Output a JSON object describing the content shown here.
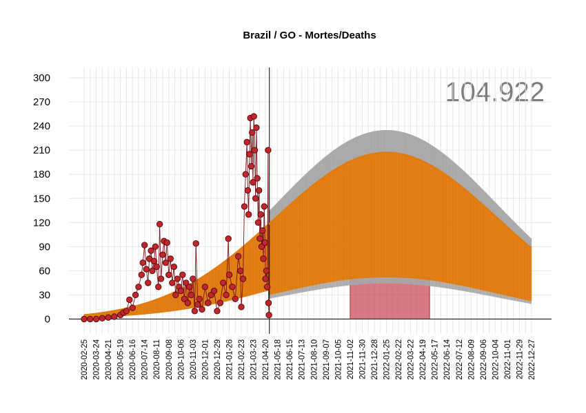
{
  "chart_data": {
    "type": "scatter",
    "title": "Brazil / GO - Mortes/Deaths",
    "total_label": "104.922",
    "xlabel": "",
    "ylabel": "",
    "ylim": [
      -15,
      315
    ],
    "yticks": [
      0,
      30,
      60,
      90,
      120,
      150,
      180,
      210,
      240,
      270,
      300
    ],
    "x_start": "2020-02-25",
    "x_end": "2022-12-27",
    "xticks": [
      "2020-02-25",
      "2020-03-24",
      "2020-04-21",
      "2020-05-19",
      "2020-06-16",
      "2020-07-14",
      "2020-08-11",
      "2020-09-08",
      "2020-10-06",
      "2020-11-03",
      "2020-12-01",
      "2020-12-29",
      "2021-01-26",
      "2021-02-23",
      "2021-03-23",
      "2021-04-20",
      "2021-05-18",
      "2021-06-15",
      "2021-07-13",
      "2021-08-10",
      "2021-09-07",
      "2021-10-05",
      "2021-11-02",
      "2021-11-30",
      "2021-12-28",
      "2022-01-25",
      "2022-02-22",
      "2022-03-22",
      "2022-04-19",
      "2022-05-17",
      "2022-06-14",
      "2022-07-12",
      "2022-08-09",
      "2022-09-06",
      "2022-10-04",
      "2022-11-01",
      "2022-11-29",
      "2022-12-27"
    ],
    "last_observed_date": "2021-04-29",
    "shaded_region": {
      "start": "2021-11-02",
      "end": "2022-05-05",
      "top": 52
    },
    "observed_daily_deaths": {
      "name": "",
      "points": [
        [
          "2020-02-25",
          0
        ],
        [
          "2020-03-10",
          0
        ],
        [
          "2020-03-24",
          0
        ],
        [
          "2020-04-07",
          1
        ],
        [
          "2020-04-21",
          2
        ],
        [
          "2020-05-05",
          3
        ],
        [
          "2020-05-19",
          5
        ],
        [
          "2020-05-26",
          8
        ],
        [
          "2020-06-02",
          10
        ],
        [
          "2020-06-09",
          24
        ],
        [
          "2020-06-16",
          14
        ],
        [
          "2020-06-23",
          30
        ],
        [
          "2020-06-30",
          40
        ],
        [
          "2020-07-07",
          55
        ],
        [
          "2020-07-10",
          70
        ],
        [
          "2020-07-14",
          92
        ],
        [
          "2020-07-18",
          62
        ],
        [
          "2020-07-22",
          45
        ],
        [
          "2020-07-25",
          75
        ],
        [
          "2020-07-29",
          85
        ],
        [
          "2020-08-01",
          60
        ],
        [
          "2020-08-05",
          72
        ],
        [
          "2020-08-08",
          90
        ],
        [
          "2020-08-11",
          65
        ],
        [
          "2020-08-15",
          40
        ],
        [
          "2020-08-18",
          118
        ],
        [
          "2020-08-21",
          50
        ],
        [
          "2020-08-25",
          80
        ],
        [
          "2020-08-28",
          97
        ],
        [
          "2020-09-01",
          70
        ],
        [
          "2020-09-04",
          95
        ],
        [
          "2020-09-08",
          55
        ],
        [
          "2020-09-12",
          75
        ],
        [
          "2020-09-16",
          45
        ],
        [
          "2020-09-20",
          65
        ],
        [
          "2020-09-24",
          30
        ],
        [
          "2020-09-28",
          50
        ],
        [
          "2020-10-02",
          40
        ],
        [
          "2020-10-06",
          35
        ],
        [
          "2020-10-10",
          55
        ],
        [
          "2020-10-14",
          25
        ],
        [
          "2020-10-18",
          45
        ],
        [
          "2020-10-22",
          20
        ],
        [
          "2020-10-26",
          40
        ],
        [
          "2020-10-30",
          30
        ],
        [
          "2020-11-03",
          50
        ],
        [
          "2020-11-07",
          10
        ],
        [
          "2020-11-10",
          94
        ],
        [
          "2020-11-14",
          18
        ],
        [
          "2020-11-18",
          25
        ],
        [
          "2020-11-24",
          12
        ],
        [
          "2020-12-01",
          40
        ],
        [
          "2020-12-08",
          20
        ],
        [
          "2020-12-15",
          30
        ],
        [
          "2020-12-22",
          35
        ],
        [
          "2020-12-29",
          10
        ],
        [
          "2021-01-05",
          20
        ],
        [
          "2021-01-12",
          45
        ],
        [
          "2021-01-19",
          30
        ],
        [
          "2021-01-24",
          100
        ],
        [
          "2021-01-26",
          55
        ],
        [
          "2021-02-02",
          40
        ],
        [
          "2021-02-09",
          25
        ],
        [
          "2021-02-16",
          78
        ],
        [
          "2021-02-21",
          60
        ],
        [
          "2021-02-23",
          15
        ],
        [
          "2021-02-27",
          50
        ],
        [
          "2021-03-02",
          140
        ],
        [
          "2021-03-05",
          180
        ],
        [
          "2021-03-08",
          220
        ],
        [
          "2021-03-10",
          160
        ],
        [
          "2021-03-12",
          130
        ],
        [
          "2021-03-14",
          205
        ],
        [
          "2021-03-16",
          250
        ],
        [
          "2021-03-18",
          190
        ],
        [
          "2021-03-20",
          232
        ],
        [
          "2021-03-22",
          170
        ],
        [
          "2021-03-24",
          252
        ],
        [
          "2021-03-26",
          210
        ],
        [
          "2021-03-28",
          150
        ],
        [
          "2021-03-30",
          238
        ],
        [
          "2021-04-01",
          175
        ],
        [
          "2021-04-03",
          120
        ],
        [
          "2021-04-05",
          160
        ],
        [
          "2021-04-07",
          100
        ],
        [
          "2021-04-09",
          130
        ],
        [
          "2021-04-11",
          90
        ],
        [
          "2021-04-13",
          110
        ],
        [
          "2021-04-15",
          75
        ],
        [
          "2021-04-17",
          140
        ],
        [
          "2021-04-19",
          95
        ],
        [
          "2021-04-20",
          50
        ],
        [
          "2021-04-22",
          60
        ],
        [
          "2021-04-24",
          40
        ],
        [
          "2021-04-26",
          210
        ],
        [
          "2021-04-27",
          20
        ],
        [
          "2021-04-28",
          5
        ]
      ]
    },
    "projection": {
      "peak_date": "2022-01-25",
      "fitted_peak": 207,
      "upper_peak": 235,
      "lower_peak": 52,
      "end_value": 88
    },
    "colors": {
      "points": "#c0272d",
      "points_stroke": "#5a0d10",
      "fit": "#e07b10",
      "upper": "#a8a8a8",
      "shade": "#c84655",
      "grid": "#e6e6e6",
      "vline": "#000000"
    }
  }
}
